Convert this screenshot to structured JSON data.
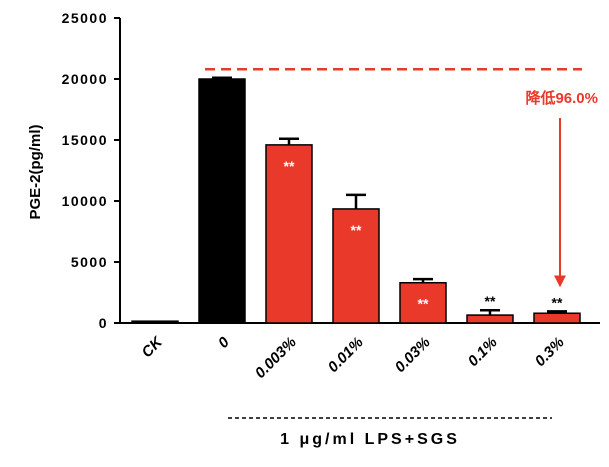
{
  "chart_data": {
    "type": "bar",
    "y_label": "PGE-2(pg/ml)",
    "group_label": "1 μg/ml LPS+SGS",
    "categories": [
      "CK",
      "0",
      "0.003%",
      "0.01%",
      "0.03%",
      "0.1%",
      "0.3%"
    ],
    "values": [
      150,
      20000,
      14600,
      9350,
      3300,
      650,
      800
    ],
    "errors": [
      0,
      100,
      500,
      1150,
      300,
      400,
      150
    ],
    "colors": [
      "#000000",
      "#000000",
      "#e8392a",
      "#e8392a",
      "#e8392a",
      "#e8392a",
      "#e8392a"
    ],
    "value_labels": [
      null,
      null,
      "**",
      "**",
      "**",
      "**",
      "**"
    ],
    "reference_line": {
      "value": 20800,
      "color": "#e8392a"
    },
    "annotation": "降低96.0%",
    "ylim": [
      0,
      25000
    ],
    "yticks": [
      0,
      5000,
      10000,
      15000,
      20000,
      25000
    ]
  }
}
